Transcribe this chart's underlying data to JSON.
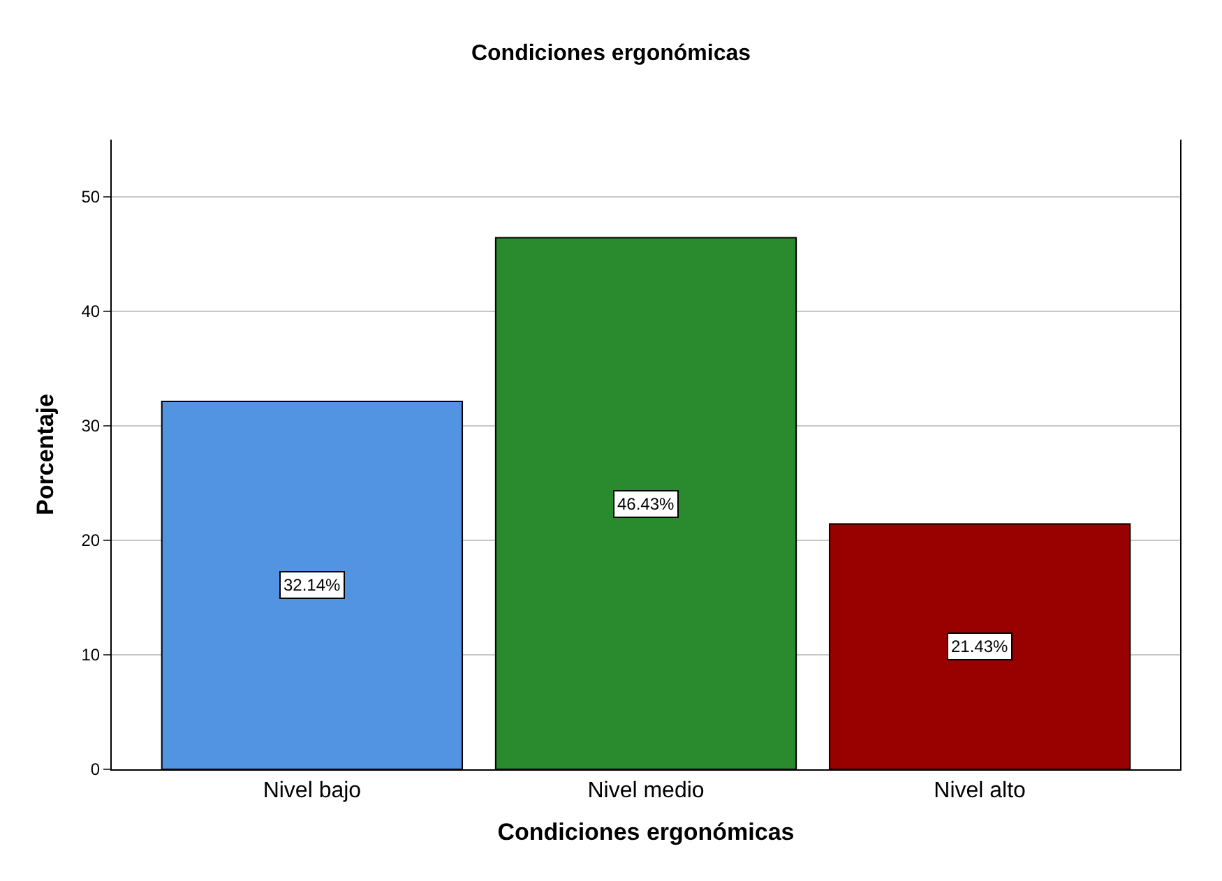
{
  "chart_data": {
    "type": "bar",
    "title": "Condiciones ergonómicas",
    "xlabel": "Condiciones ergonómicas",
    "ylabel": "Porcentaje",
    "categories": [
      "Nivel bajo",
      "Nivel medio",
      "Nivel alto"
    ],
    "values": [
      32.14,
      46.43,
      21.43
    ],
    "colors": [
      "#5294e2",
      "#2a8a2e",
      "#990000"
    ],
    "value_labels": [
      "32.14%",
      "46.43%",
      "21.43%"
    ],
    "ylim": [
      0,
      55
    ],
    "yticks": [
      0,
      10,
      20,
      30,
      40,
      50
    ],
    "grid": "y"
  }
}
